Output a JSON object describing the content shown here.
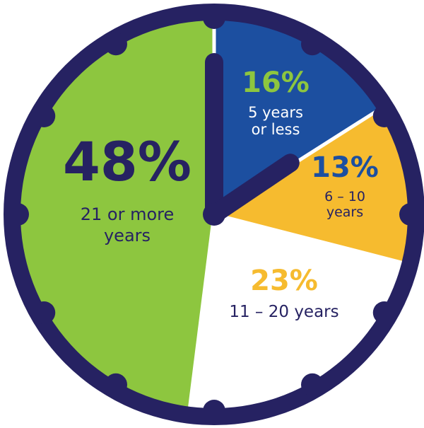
{
  "chart_data": {
    "type": "pie",
    "slices": [
      {
        "value": 16,
        "percent_label": "16%",
        "label_lines": [
          "5 years",
          "or less"
        ],
        "color": "#1c4fa0",
        "pct_color": "#8dc63f",
        "label_color": "#ffffff"
      },
      {
        "value": 13,
        "percent_label": "13%",
        "label_lines": [
          "6 – 10",
          "years"
        ],
        "color": "#f6bb2f",
        "pct_color": "#1c4fa0",
        "label_color": "#262262"
      },
      {
        "value": 23,
        "percent_label": "23%",
        "label_lines": [
          "11 – 20 years"
        ],
        "color": "#ffffff",
        "pct_color": "#f6bb2f",
        "label_color": "#262262"
      },
      {
        "value": 48,
        "percent_label": "48%",
        "label_lines": [
          "21 or more",
          "years"
        ],
        "color": "#8dc63f",
        "pct_color": "#262262",
        "label_color": "#262262"
      }
    ]
  },
  "clock": {
    "rim_color": "#262262",
    "hand_color": "#262262"
  }
}
